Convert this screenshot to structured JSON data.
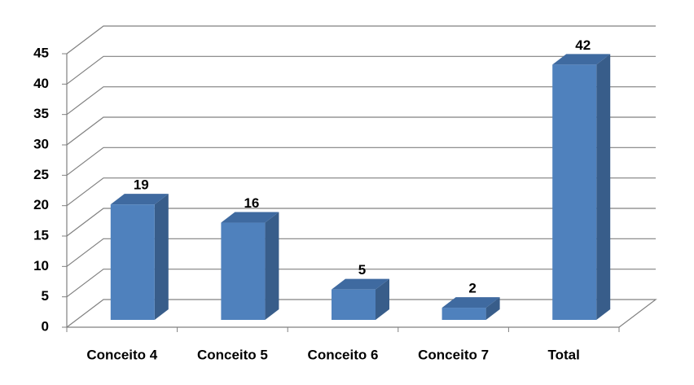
{
  "chart_data": {
    "type": "bar3d",
    "categories": [
      "Conceito 4",
      "Conceito 5",
      "Conceito 6",
      "Conceito 7",
      "Total"
    ],
    "values": [
      19,
      16,
      5,
      2,
      42
    ],
    "color": "#4f81bd",
    "ylim": [
      0,
      45
    ],
    "yticks": [
      0,
      5,
      10,
      15,
      20,
      25,
      30,
      35,
      40,
      45
    ],
    "grid": true
  }
}
